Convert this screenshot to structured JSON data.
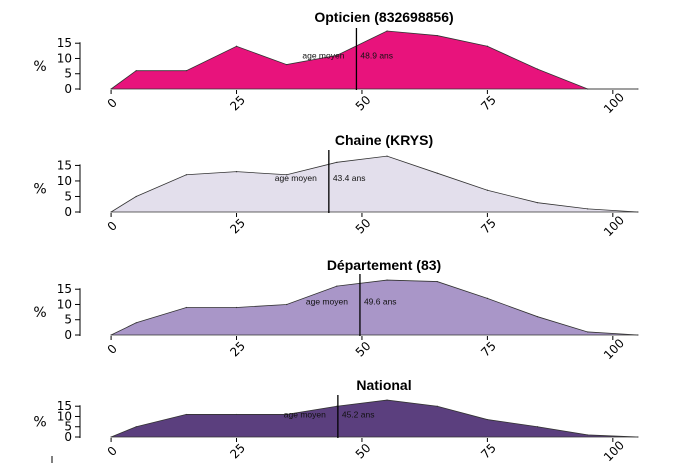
{
  "chart_data": [
    {
      "type": "area",
      "title": "Opticien (832698856)",
      "ylabel": "%",
      "xlabel": "",
      "x": [
        0,
        5,
        15,
        25,
        35,
        45,
        55,
        65,
        75,
        85,
        95,
        105
      ],
      "values": [
        0,
        6,
        6,
        14,
        8,
        11,
        19,
        17.5,
        14,
        6.5,
        0,
        0
      ],
      "xlim": [
        -5,
        110
      ],
      "ylim": [
        0,
        19
      ],
      "yticks": [
        0,
        5,
        10,
        15
      ],
      "xticks": [
        0,
        25,
        50,
        75,
        100
      ],
      "mean_label": "age moyen",
      "mean_value": 48.9,
      "mean_text": "48.9 ans",
      "color": "#E8137C"
    },
    {
      "type": "area",
      "title": "Chaine (KRYS)",
      "ylabel": "%",
      "xlabel": "",
      "x": [
        0,
        5,
        15,
        25,
        35,
        45,
        55,
        65,
        75,
        85,
        95,
        105
      ],
      "values": [
        0,
        5,
        12,
        13,
        12,
        16,
        18,
        12.5,
        7,
        3,
        1,
        0
      ],
      "xlim": [
        -5,
        110
      ],
      "ylim": [
        0,
        19
      ],
      "yticks": [
        0,
        5,
        10,
        15
      ],
      "xticks": [
        0,
        25,
        50,
        75,
        100
      ],
      "mean_label": "age moyen",
      "mean_value": 43.4,
      "mean_text": "43.4 ans",
      "color": "#E3DFEC"
    },
    {
      "type": "area",
      "title": "Département (83)",
      "ylabel": "%",
      "xlabel": "",
      "x": [
        0,
        5,
        15,
        25,
        35,
        45,
        55,
        65,
        75,
        85,
        95,
        105
      ],
      "values": [
        0,
        4,
        9,
        9,
        10,
        16,
        18,
        17.5,
        12,
        6,
        1,
        0
      ],
      "xlim": [
        -5,
        110
      ],
      "ylim": [
        0,
        19
      ],
      "yticks": [
        0,
        5,
        10,
        15
      ],
      "xticks": [
        0,
        25,
        50,
        75,
        100
      ],
      "mean_label": "age moyen",
      "mean_value": 49.6,
      "mean_text": "49.6 ans",
      "color": "#A996C8"
    },
    {
      "type": "area",
      "title": "National",
      "ylabel": "%",
      "xlabel": "",
      "x": [
        0,
        5,
        15,
        25,
        35,
        45,
        55,
        65,
        75,
        85,
        95,
        105
      ],
      "values": [
        0,
        5,
        11,
        11,
        11,
        15,
        18,
        15,
        8.5,
        5,
        1,
        0
      ],
      "xlim": [
        -5,
        110
      ],
      "ylim": [
        0,
        19
      ],
      "yticks": [
        0,
        5,
        10,
        15
      ],
      "xticks": [
        0,
        25,
        50,
        75,
        100
      ],
      "mean_label": "age moyen",
      "mean_value": 45.2,
      "mean_text": "45.2 ans",
      "color": "#5B3F7E"
    }
  ]
}
